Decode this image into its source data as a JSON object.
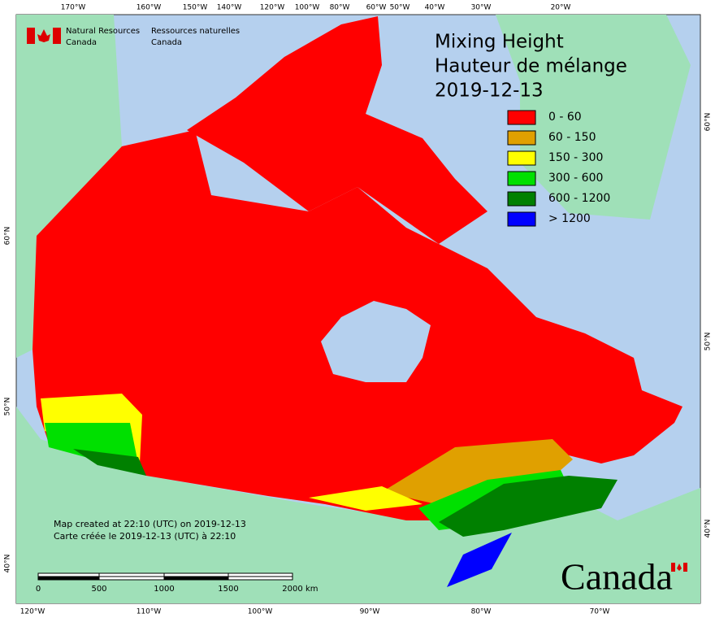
{
  "header": {
    "agency_en": [
      "Natural Resources",
      "Canada"
    ],
    "agency_fr": [
      "Ressources naturelles",
      "Canada"
    ]
  },
  "title": [
    "Mixing Height",
    "Hauteur de mélange",
    "2019-12-13"
  ],
  "legend": [
    {
      "label": "0 - 60",
      "color": "#ff0000"
    },
    {
      "label": "60 - 150",
      "color": "#e0a000"
    },
    {
      "label": "150 - 300",
      "color": "#ffff00"
    },
    {
      "label": "300 - 600",
      "color": "#00e000"
    },
    {
      "label": "600 - 1200",
      "color": "#008000"
    },
    {
      "label": "> 1200",
      "color": "#0000ff"
    }
  ],
  "graticule": {
    "top": [
      "170°W",
      "160°W",
      "150°W",
      "140°W",
      "120°W",
      "100°W",
      "80°W",
      "60°W",
      "50°W",
      "40°W",
      "30°W",
      "20°W"
    ],
    "bottom": [
      "120°W",
      "110°W",
      "100°W",
      "90°W",
      "80°W",
      "70°W"
    ],
    "left": [
      "60°N",
      "50°N",
      "40°N"
    ],
    "right": [
      "60°N",
      "50°N",
      "40°N"
    ]
  },
  "note": [
    "Map created at 22:10 (UTC) on 2019-12-13",
    "Carte créée le 2019-12-13 (UTC) à 22:10"
  ],
  "scale_bar": {
    "labels": [
      "0",
      "500",
      "1000",
      "1500",
      "2000"
    ],
    "unit": "km"
  },
  "wordmark": "Canada"
}
